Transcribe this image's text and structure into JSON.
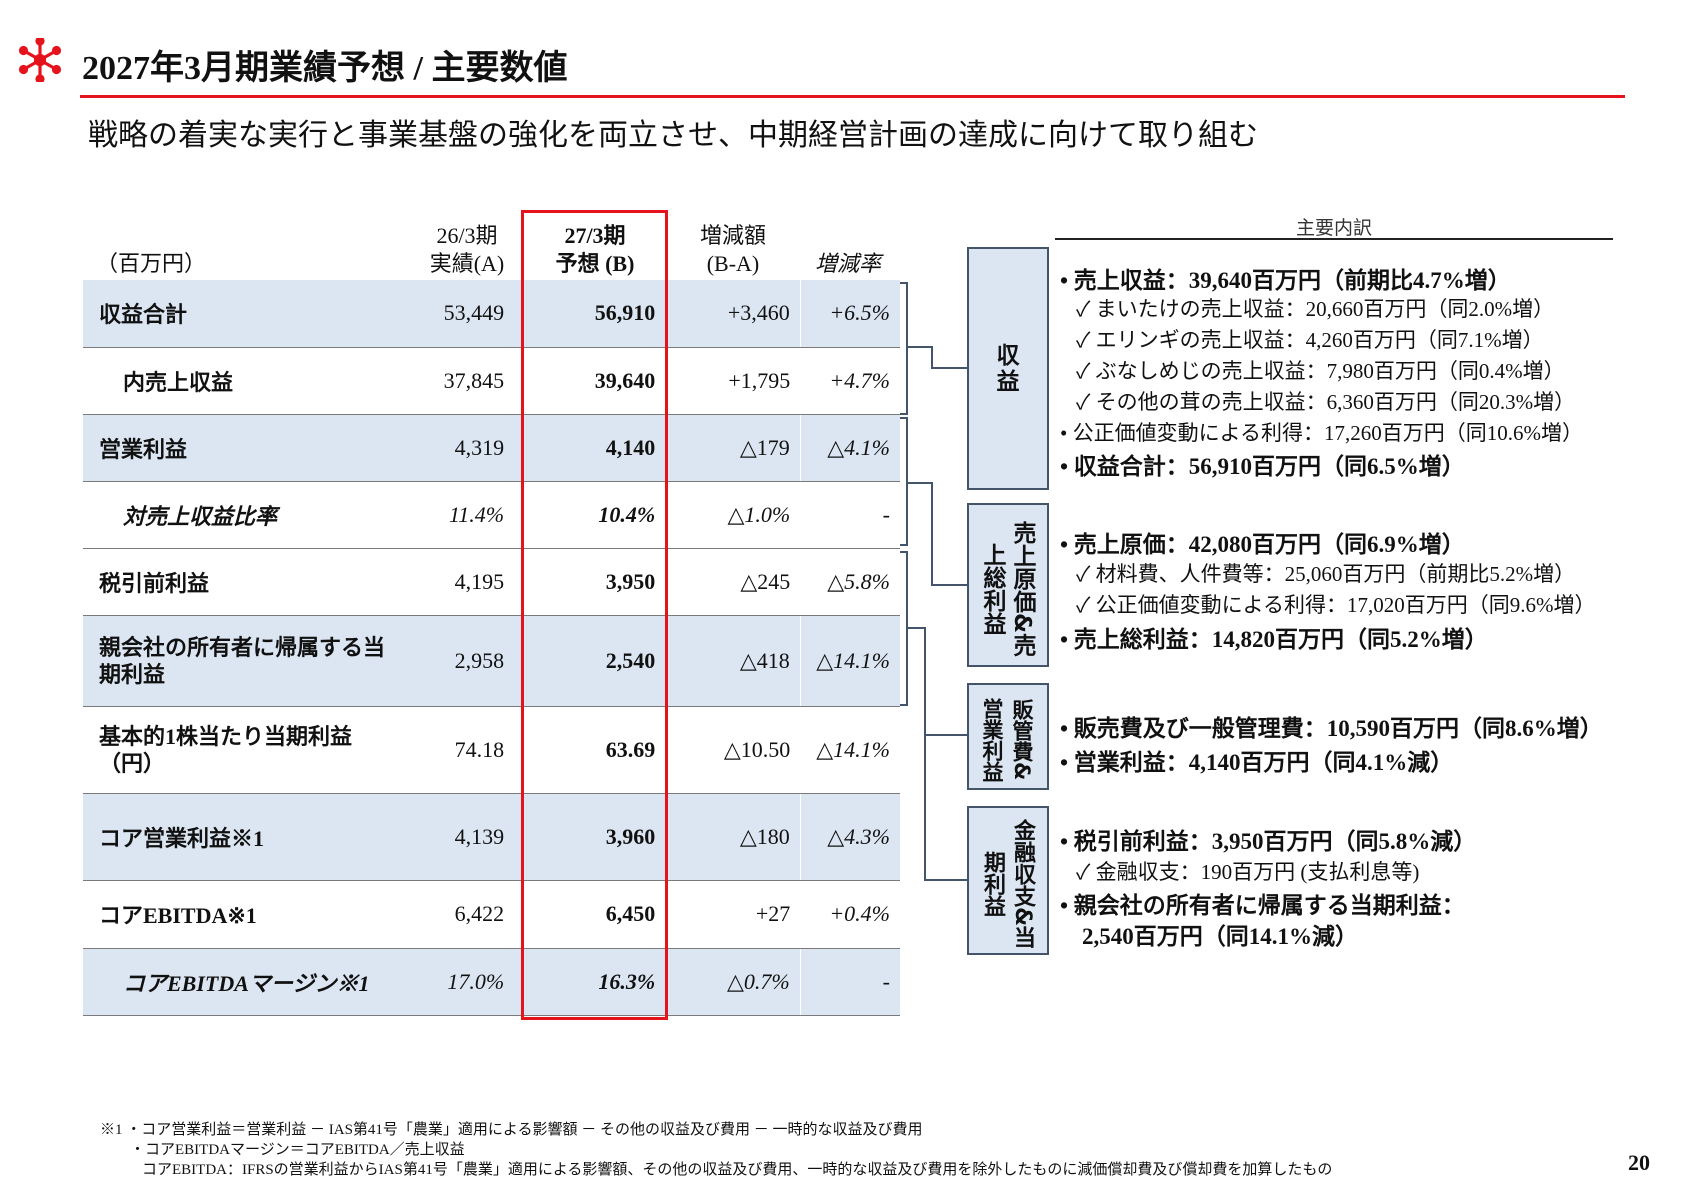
{
  "header": {
    "title": "2027年3月期業績予想 / 主要数値",
    "subtitle": "戦略の着実な実行と事業基盤の強化を両立させ、中期経営計画の達成に向けて取り組む"
  },
  "table": {
    "unit_label": "（百万円）",
    "col_a": "26/3期\n実績(A)",
    "col_b": "27/3期\n予想 (B)",
    "col_d": "増減額\n(B-A)",
    "col_r": "増減率",
    "rows": [
      {
        "label": "収益合計",
        "a": "53,449",
        "b": "56,910",
        "d": "+3,460",
        "r": "+6.5%"
      },
      {
        "label": "内売上収益",
        "a": "37,845",
        "b": "39,640",
        "d": "+1,795",
        "r": "+4.7%"
      },
      {
        "label": "営業利益",
        "a": "4,319",
        "b": "4,140",
        "d": "△179",
        "r": "△4.1%"
      },
      {
        "label": "対売上収益比率",
        "a": "11.4%",
        "b": "10.4%",
        "d": "△1.0%",
        "r": "-"
      },
      {
        "label": "税引前利益",
        "a": "4,195",
        "b": "3,950",
        "d": "△245",
        "r": "△5.8%"
      },
      {
        "label": "親会社の所有者に帰属する当期利益",
        "a": "2,958",
        "b": "2,540",
        "d": "△418",
        "r": "△14.1%"
      },
      {
        "label": "基本的1株当たり当期利益（円）",
        "a": "74.18",
        "b": "63.69",
        "d": "△10.50",
        "r": "△14.1%"
      },
      {
        "label": "コア営業利益※1",
        "a": "4,139",
        "b": "3,960",
        "d": "△180",
        "r": "△4.3%"
      },
      {
        "label": "コアEBITDA※1",
        "a": "6,422",
        "b": "6,450",
        "d": "+27",
        "r": "+0.4%"
      },
      {
        "label": "コアEBITDAマージン※1",
        "a": "17.0%",
        "b": "16.3%",
        "d": "△0.7%",
        "r": "-"
      }
    ]
  },
  "breakdown": {
    "heading": "主要内訳",
    "categories": [
      "収益",
      "売上原価&売上総利益",
      "販管費&営業利益",
      "金融収支&当期利益"
    ],
    "lines": [
      "• 売上収益：39,640百万円（前期比4.7%増）",
      "✓ まいたけの売上収益：20,660百万円（同2.0%増）",
      "✓ エリンギの売上収益：4,260百万円（同7.1%増）",
      "✓ ぶなしめじの売上収益：7,980百万円（同0.4%増）",
      "✓ その他の茸の売上収益：6,360百万円（同20.3%増）",
      "• 公正価値変動による利得：17,260百万円（同10.6%増）",
      "• 収益合計：56,910百万円（同6.5%増）",
      "• 売上原価：42,080百万円（同6.9%増）",
      "✓ 材料費、人件費等：25,060百万円（前期比5.2%増）",
      "✓ 公正価値変動による利得：17,020百万円（同9.6%増）",
      "• 売上総利益：14,820百万円（同5.2%増）",
      "• 販売費及び一般管理費：10,590百万円（同8.6%増）",
      "• 営業利益：4,140百万円（同4.1%減）",
      "• 税引前利益：3,950百万円（同5.8%減）",
      "✓ 金融収支：190百万円 (支払利息等)",
      "• 親会社の所有者に帰属する当期利益：",
      "2,540百万円（同14.1%減）"
    ]
  },
  "footnotes": [
    "※1 ・コア営業利益＝営業利益 － IAS第41号「農業」適用による影響額 － その他の収益及び費用 － 一時的な収益及び費用",
    "・コアEBITDAマージン＝コアEBITDA／売上収益",
    "コアEBITDA：IFRSの営業利益からIAS第41号「農業」適用による影響額、その他の収益及び費用、一時的な収益及び費用を除外したものに減価償却費及び償却費を加算したもの"
  ],
  "page_number": "20",
  "colors": {
    "accent": "#e5141c",
    "shade": "#dce6f2",
    "box_border": "#44546a"
  },
  "icons": {
    "logo": "snowflake-logo-icon"
  }
}
